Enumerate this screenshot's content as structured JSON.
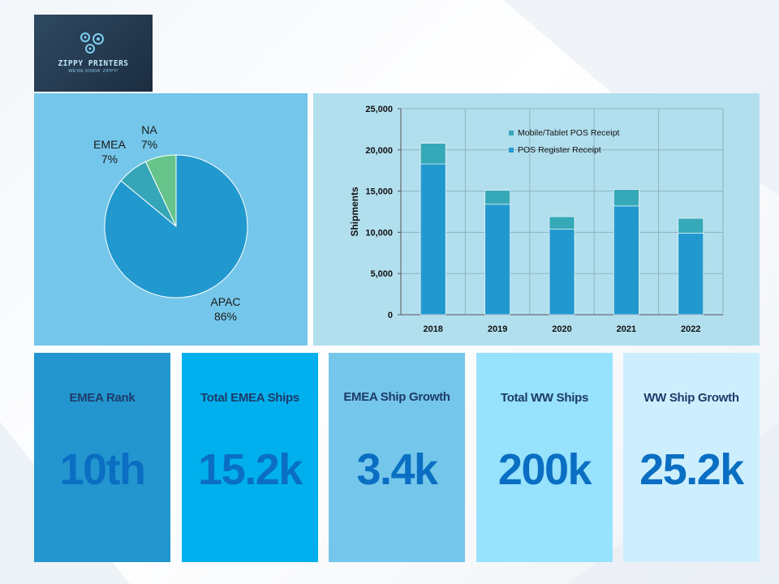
{
  "logo": {
    "name": "ZIPPY PRINTERS",
    "tagline": "WE'RE KINDA' ZIPPY!",
    "icon": "gears-icon"
  },
  "colors": {
    "pie_panel_bg": "#74c6ea",
    "bar_panel_bg": "#b2dfee",
    "apac": "#2299ce",
    "emea": "#34a6b8",
    "na": "#66c48a",
    "series_register": "#2299ce",
    "series_mobile": "#36a9b8",
    "kpi_value": "#0a6fc3",
    "kpi_title": "#1d3b6a",
    "kpi_bgs": [
      "#2396cf",
      "#00b0ee",
      "#74c6ea",
      "#97e2fc",
      "#cdeffd"
    ]
  },
  "chart_data": [
    {
      "type": "pie",
      "slices": [
        {
          "label": "APAC",
          "value": 86,
          "display": "86%",
          "color": "#2299ce"
        },
        {
          "label": "EMEA",
          "value": 7,
          "display": "7%",
          "color": "#34a6b8"
        },
        {
          "label": "NA",
          "value": 7,
          "display": "7%",
          "color": "#66c48a"
        }
      ]
    },
    {
      "type": "bar",
      "stacked": true,
      "categories": [
        "2018",
        "2019",
        "2020",
        "2021",
        "2022"
      ],
      "series": [
        {
          "name": "POS Register Receipt",
          "values": [
            18300,
            13400,
            10400,
            13200,
            9900
          ],
          "color": "#2299ce"
        },
        {
          "name": "Mobile/Tablet POS Receipt",
          "values": [
            2500,
            1700,
            1500,
            2000,
            1800
          ],
          "color": "#36a9b8"
        }
      ],
      "ylabel": "Shipments",
      "xlabel": "",
      "ylim": [
        0,
        25000
      ],
      "yticks": [
        "0",
        "5,000",
        "10,000",
        "15,000",
        "20,000",
        "25,000"
      ],
      "ytick_values": [
        0,
        5000,
        10000,
        15000,
        20000,
        25000
      ],
      "grid": true,
      "legend": "top-right"
    }
  ],
  "kpis": [
    {
      "title": "EMEA Rank",
      "value": "10th"
    },
    {
      "title": "Total EMEA Ships",
      "value": "15.2k"
    },
    {
      "title": "EMEA Ship Growth",
      "value": "3.4k"
    },
    {
      "title": "Total WW Ships",
      "value": "200k"
    },
    {
      "title": "WW Ship Growth",
      "value": "25.2k"
    }
  ]
}
